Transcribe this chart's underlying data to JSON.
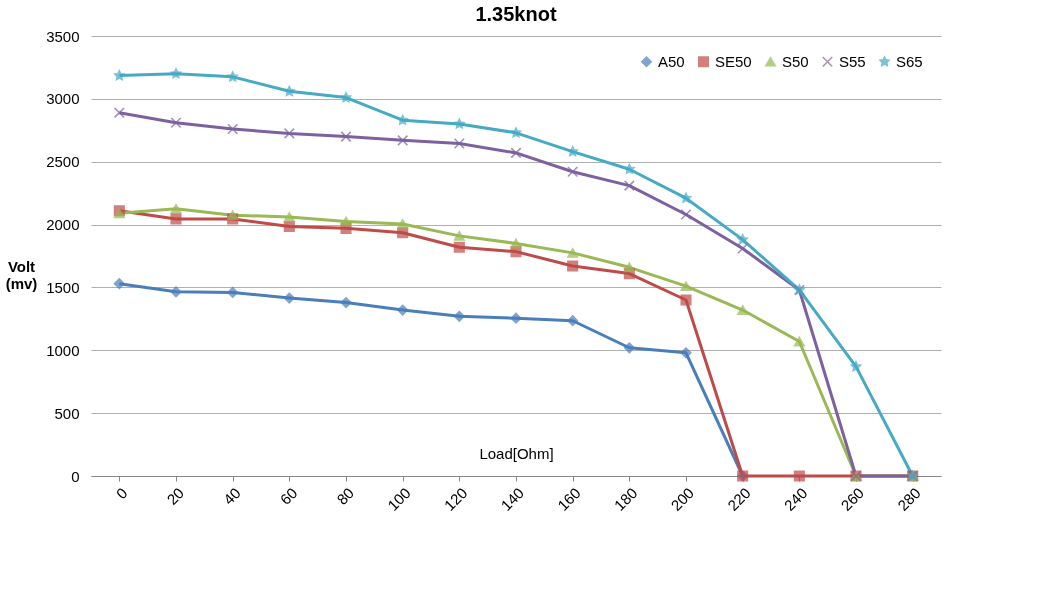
{
  "chart_data": {
    "type": "line",
    "title": "1.35knot",
    "xlabel": "Load[Ohm]",
    "ylabel": "Volt (mv)",
    "categories": [
      "0",
      "20",
      "40",
      "60",
      "80",
      "100",
      "120",
      "140",
      "160",
      "180",
      "200",
      "220",
      "240",
      "260",
      "280"
    ],
    "series": [
      {
        "name": "A50",
        "color": "#4a7ebb",
        "marker": "diamond",
        "values": [
          1530,
          1465,
          1460,
          1415,
          1380,
          1320,
          1270,
          1255,
          1235,
          1020,
          980,
          0,
          null,
          null,
          null
        ]
      },
      {
        "name": "SE50",
        "color": "#be4b48",
        "marker": "square",
        "values": [
          2110,
          2045,
          2045,
          1985,
          1970,
          1935,
          1820,
          1785,
          1670,
          1610,
          1400,
          0,
          0,
          0,
          0
        ]
      },
      {
        "name": "S50",
        "color": "#98b954",
        "marker": "triangle",
        "values": [
          2090,
          2125,
          2075,
          2060,
          2025,
          2005,
          1910,
          1850,
          1775,
          1660,
          1510,
          1320,
          1070,
          0,
          0
        ]
      },
      {
        "name": "S55",
        "color": "#7d60a0",
        "marker": "cross",
        "values": [
          2890,
          2810,
          2760,
          2725,
          2700,
          2670,
          2645,
          2570,
          2420,
          2310,
          2080,
          1810,
          1480,
          0,
          0
        ]
      },
      {
        "name": "S65",
        "color": "#46aac5",
        "marker": "star",
        "values": [
          3185,
          3200,
          3175,
          3060,
          3010,
          2830,
          2800,
          2730,
          2580,
          2440,
          2210,
          1880,
          1480,
          870,
          0
        ]
      }
    ],
    "ylim": [
      0,
      3500
    ],
    "yticks": [
      0,
      500,
      1000,
      1500,
      2000,
      2500,
      3000,
      3500
    ],
    "grid": "y",
    "legend": "top right",
    "line_style": "solid"
  }
}
